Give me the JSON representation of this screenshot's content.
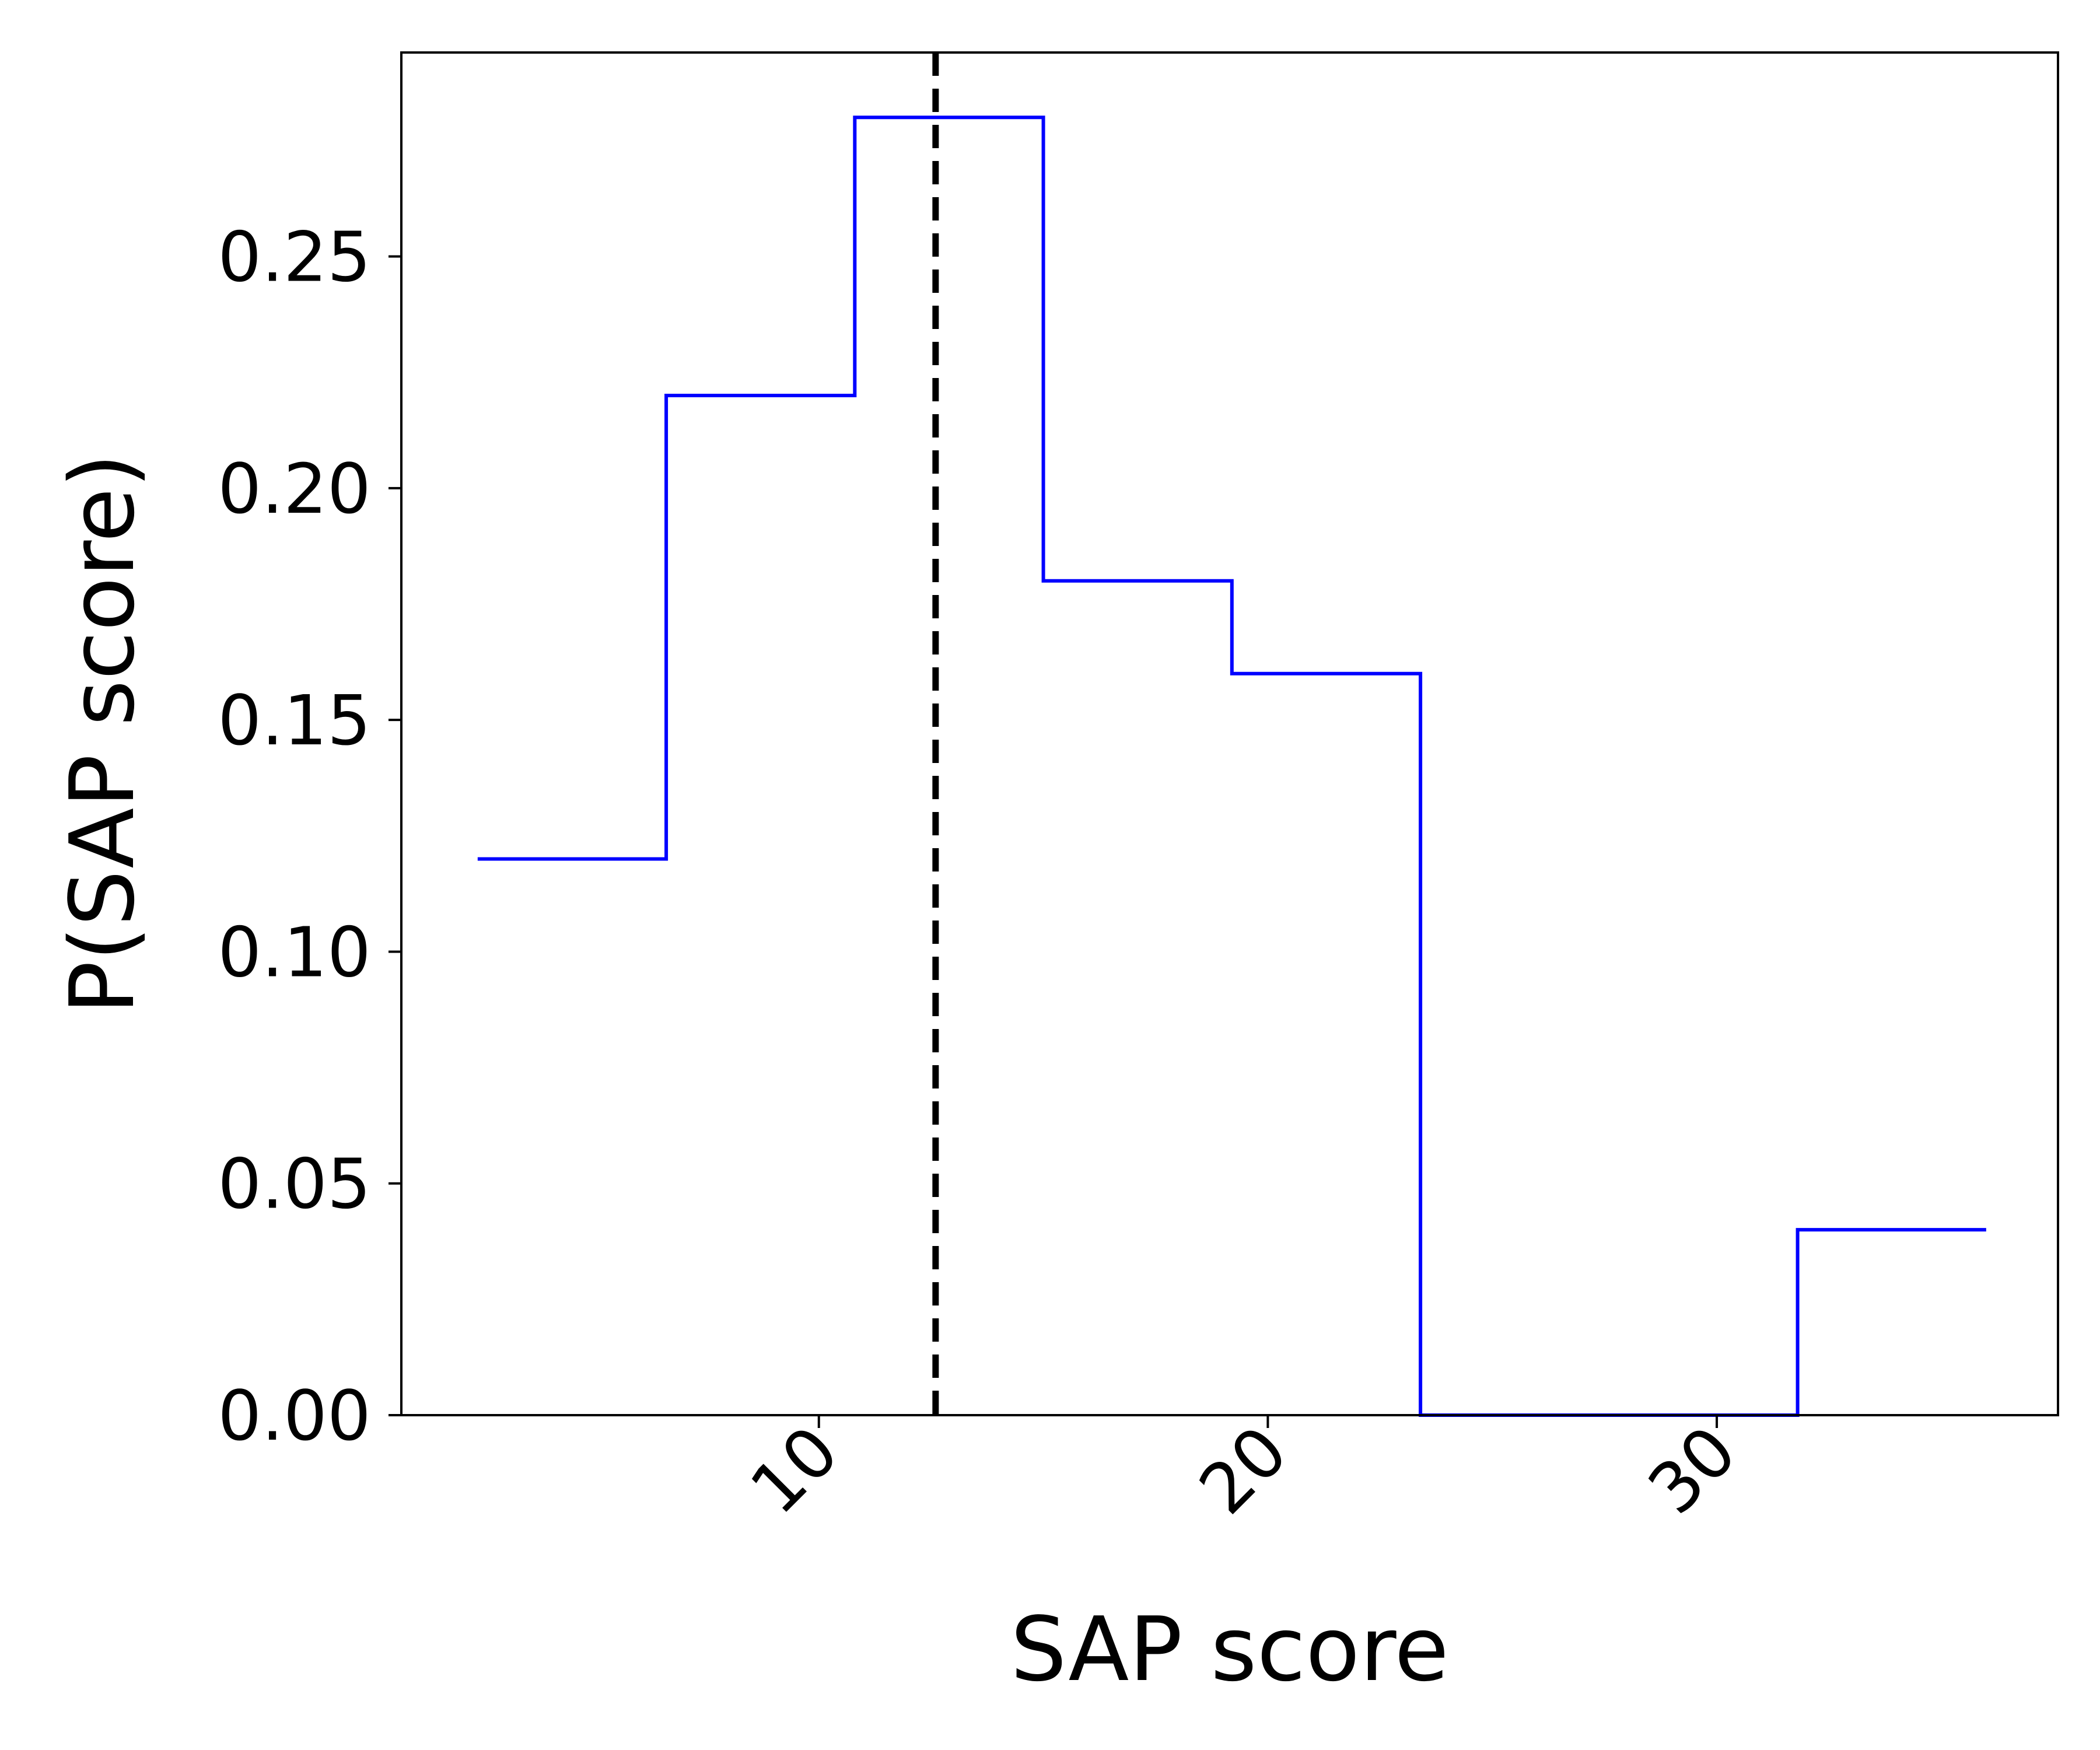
{
  "chart_data": {
    "type": "step",
    "title": "",
    "xlabel": "SAP score",
    "ylabel": "P(SAP score)",
    "xlim": [
      0.7,
      37.6
    ],
    "ylim": [
      0.0,
      0.294
    ],
    "xticks": [
      10,
      20,
      30
    ],
    "xtick_labels": [
      "10",
      "20",
      "30"
    ],
    "yticks": [
      0.0,
      0.05,
      0.1,
      0.15,
      0.2,
      0.25
    ],
    "ytick_labels": [
      "0.00",
      "0.05",
      "0.10",
      "0.15",
      "0.20",
      "0.25"
    ],
    "grid": false,
    "series": [
      {
        "color": "#0000ff",
        "bin_edges": [
          2.4,
          6.6,
          10.8,
          15.0,
          19.2,
          23.4,
          27.6,
          31.8,
          36.0
        ],
        "values": [
          0.12,
          0.22,
          0.28,
          0.18,
          0.16,
          0.0,
          0.0,
          0.04
        ]
      }
    ],
    "reference_line": {
      "x": 12.6,
      "color": "#000000",
      "style": "dashed"
    }
  }
}
